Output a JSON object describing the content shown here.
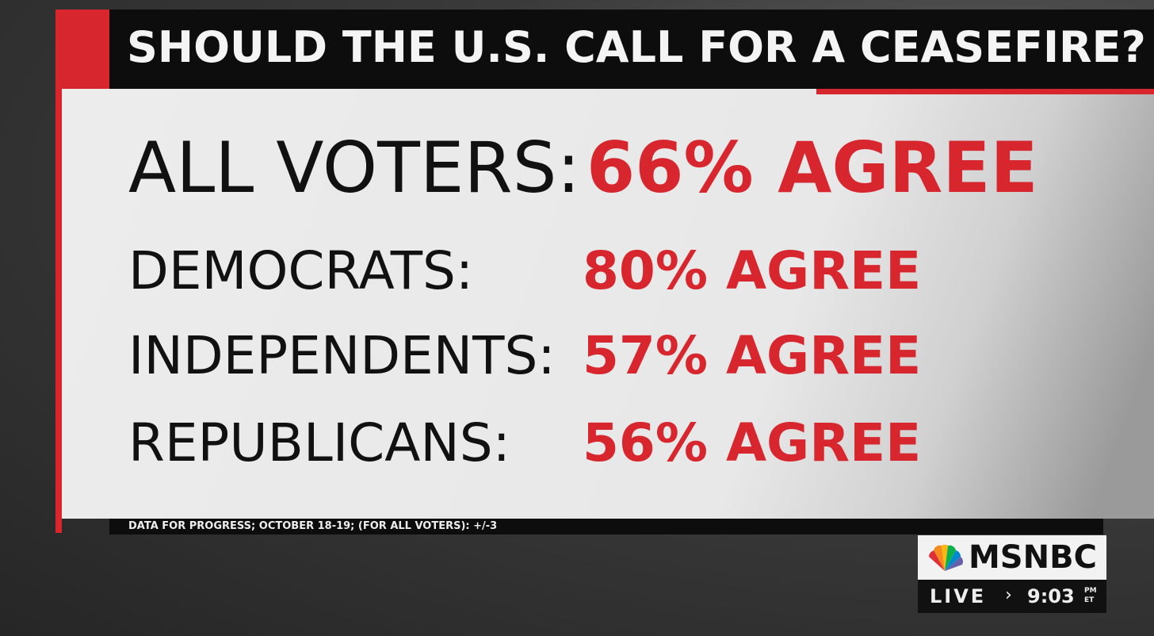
{
  "header": {
    "title": "SHOULD THE U.S. CALL FOR A CEASEFIRE?"
  },
  "rows": [
    {
      "label": "ALL VOTERS:",
      "value": "66% AGREE"
    },
    {
      "label": "DEMOCRATS:",
      "value": "80% AGREE"
    },
    {
      "label": "INDEPENDENTS:",
      "value": "57% AGREE"
    },
    {
      "label": "REPUBLICANS:",
      "value": "56% AGREE"
    }
  ],
  "source": "DATA FOR PROGRESS; OCTOBER 18-19; (FOR ALL VOTERS): +/-3",
  "bug": {
    "network": "MSNBC",
    "status": "LIVE",
    "time": "9:03",
    "meridiem": "PM",
    "zone": "ET"
  }
}
